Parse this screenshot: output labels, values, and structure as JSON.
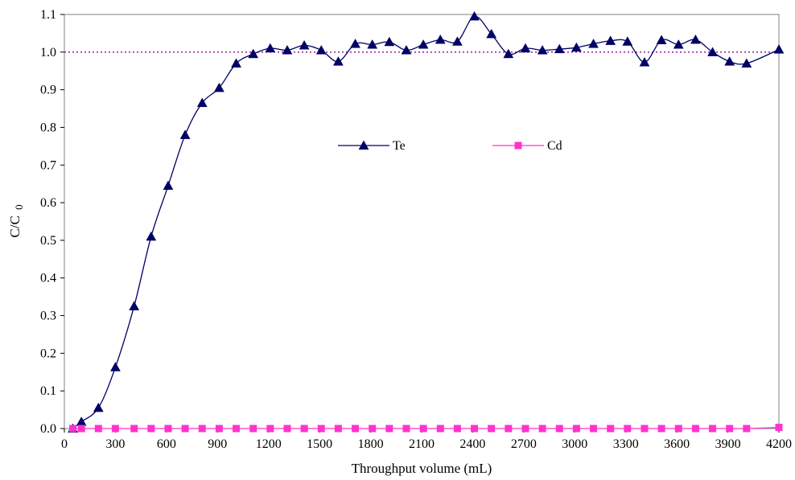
{
  "chart_data": {
    "type": "line",
    "xlabel": "Throughput volume (mL)",
    "ylabel_main": "C/C",
    "ylabel_sub": "0",
    "xlim": [
      0,
      4200
    ],
    "ylim": [
      0,
      1.1
    ],
    "x_ticks": [
      0,
      300,
      600,
      900,
      1200,
      1500,
      1800,
      2100,
      2400,
      2700,
      3000,
      3300,
      3600,
      3900,
      4200
    ],
    "y_ticks": [
      "0.0",
      "0.1",
      "0.2",
      "0.3",
      "0.4",
      "0.5",
      "0.6",
      "0.7",
      "0.8",
      "0.9",
      "1.0",
      "1.1"
    ],
    "grid": false,
    "reference_line": {
      "y": 1.0,
      "color": "#993399",
      "style": "dotted"
    },
    "legend": {
      "placement": "top-center"
    },
    "series": [
      {
        "name": "Te",
        "marker": "triangle",
        "color": "#000066",
        "x": [
          50,
          100,
          200,
          300,
          410,
          510,
          610,
          710,
          810,
          910,
          1010,
          1110,
          1210,
          1310,
          1410,
          1510,
          1610,
          1710,
          1810,
          1910,
          2010,
          2110,
          2210,
          2310,
          2410,
          2510,
          2610,
          2710,
          2810,
          2910,
          3010,
          3110,
          3210,
          3310,
          3410,
          3510,
          3610,
          3710,
          3810,
          3910,
          4010,
          4200
        ],
        "y": [
          0.0,
          0.018,
          0.055,
          0.163,
          0.325,
          0.51,
          0.645,
          0.78,
          0.865,
          0.905,
          0.97,
          0.995,
          1.01,
          1.005,
          1.018,
          1.005,
          0.975,
          1.022,
          1.02,
          1.027,
          1.005,
          1.02,
          1.033,
          1.028,
          1.095,
          1.048,
          0.995,
          1.01,
          1.005,
          1.008,
          1.012,
          1.022,
          1.03,
          1.028,
          0.973,
          1.032,
          1.02,
          1.033,
          1.0,
          0.975,
          0.97,
          1.007
        ]
      },
      {
        "name": "Cd",
        "marker": "square",
        "color": "#ff33cc",
        "x": [
          50,
          100,
          200,
          300,
          410,
          510,
          610,
          710,
          810,
          910,
          1010,
          1110,
          1210,
          1310,
          1410,
          1510,
          1610,
          1710,
          1810,
          1910,
          2010,
          2110,
          2210,
          2310,
          2410,
          2510,
          2610,
          2710,
          2810,
          2910,
          3010,
          3110,
          3210,
          3310,
          3410,
          3510,
          3610,
          3710,
          3810,
          3910,
          4010,
          4200
        ],
        "y": [
          0,
          0,
          0,
          0,
          0,
          0,
          0,
          0,
          0,
          0,
          0,
          0,
          0,
          0,
          0,
          0,
          0,
          0,
          0,
          0,
          0,
          0,
          0,
          0,
          0,
          0,
          0,
          0,
          0,
          0,
          0,
          0,
          0,
          0,
          0,
          0,
          0,
          0,
          0,
          0,
          0,
          0.003
        ]
      }
    ]
  }
}
